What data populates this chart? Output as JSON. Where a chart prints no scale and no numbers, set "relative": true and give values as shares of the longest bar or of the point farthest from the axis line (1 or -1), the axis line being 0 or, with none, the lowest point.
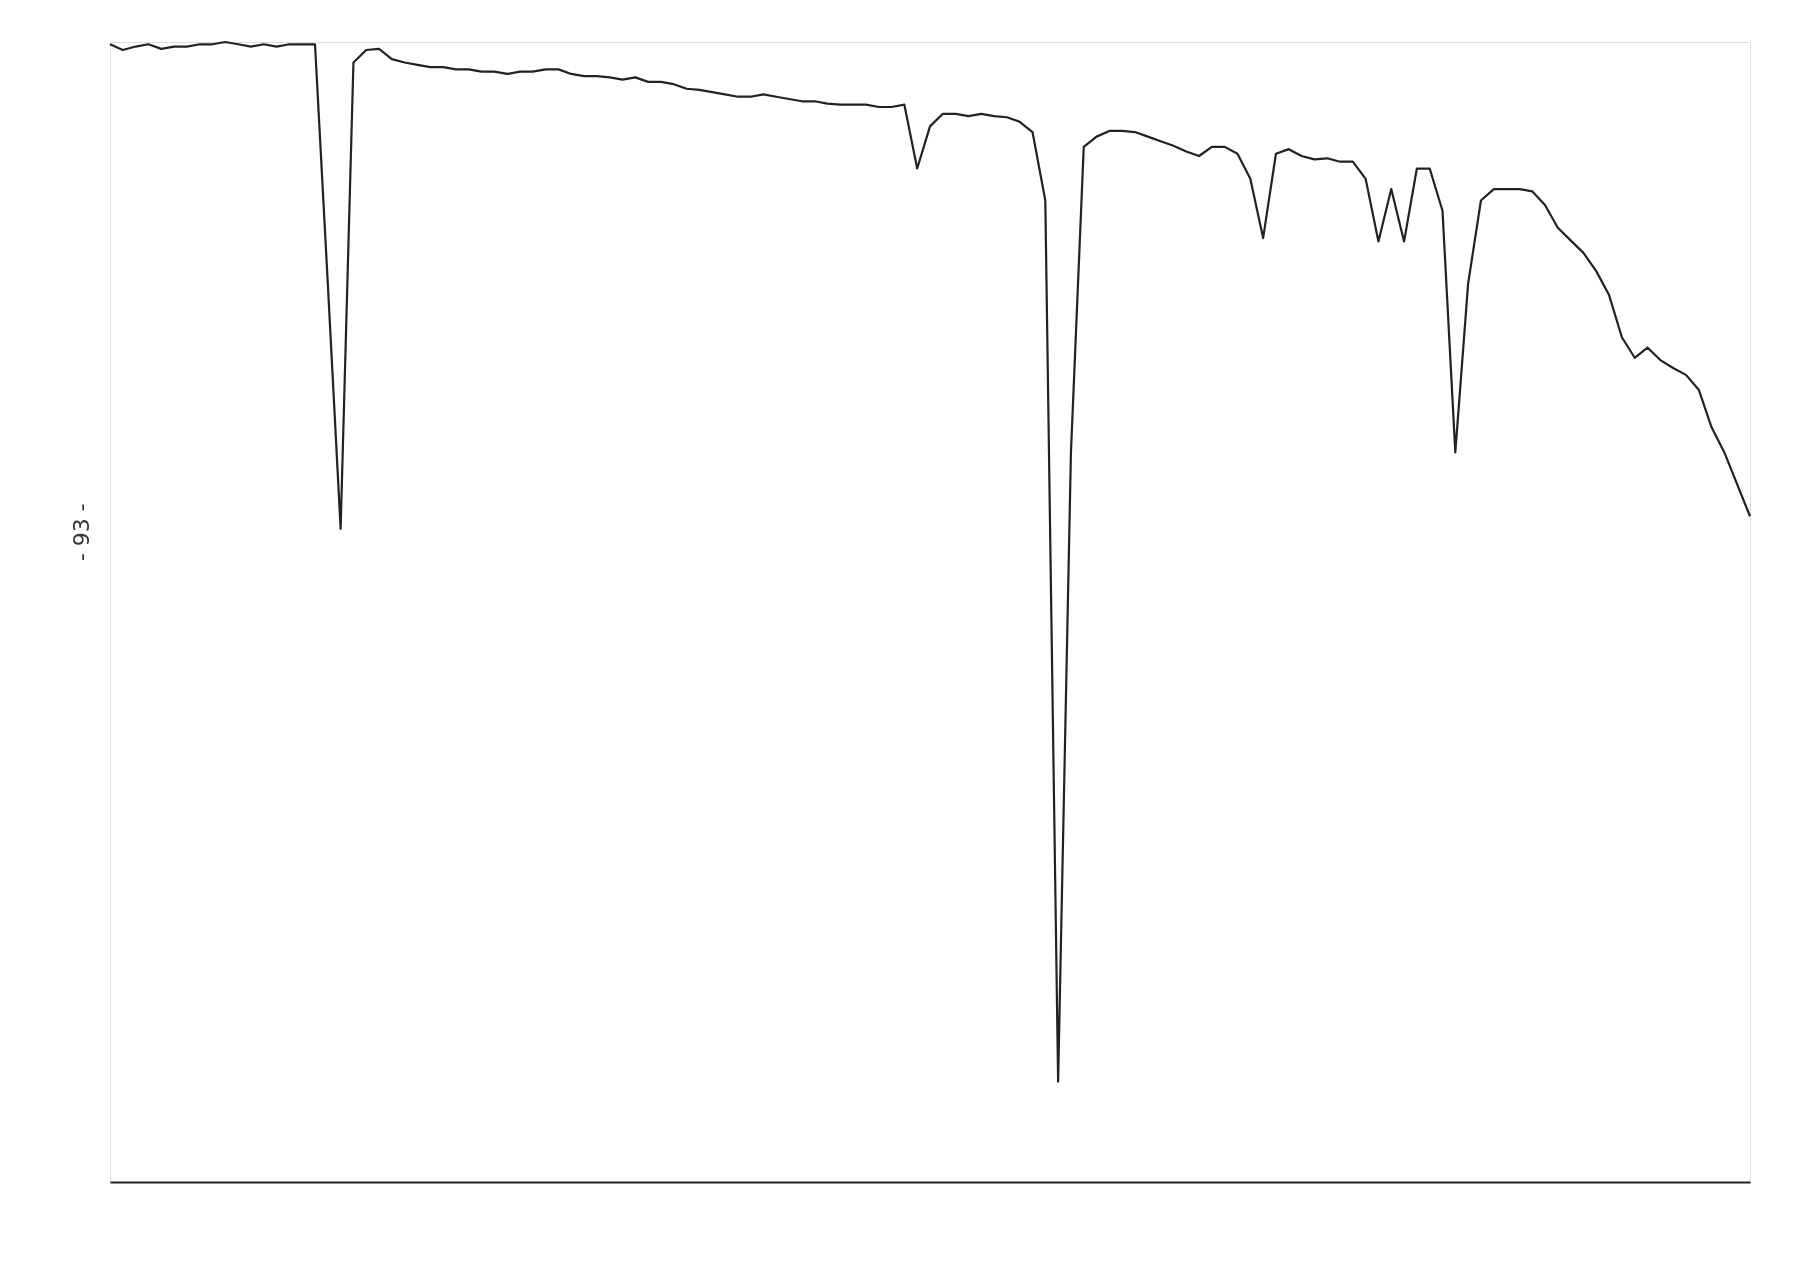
{
  "chart_data": {
    "type": "line",
    "relative": true,
    "line_style": "solid",
    "marker": "none",
    "grid": false,
    "annotations": [
      "- 93 -"
    ],
    "categories": [
      null,
      null,
      null,
      null,
      null,
      null,
      null,
      null,
      null,
      null,
      null,
      null,
      null,
      null,
      null,
      null,
      null,
      null,
      null,
      null,
      null,
      null,
      null,
      null,
      null,
      null,
      null,
      null,
      null,
      null,
      null,
      null,
      null,
      null,
      null,
      null,
      null,
      null,
      null,
      null,
      null,
      null,
      null,
      null,
      null,
      null,
      null,
      null,
      null,
      null,
      null,
      null,
      null,
      null,
      null,
      null,
      null,
      null,
      null,
      null,
      null,
      null,
      null,
      null,
      null,
      null,
      null,
      null,
      null,
      null,
      null,
      null,
      null,
      null,
      null,
      null,
      null,
      null,
      null,
      null,
      null,
      null,
      null,
      null,
      null,
      null,
      null,
      null,
      null,
      null,
      null,
      null,
      null,
      null,
      null,
      null,
      null,
      null,
      null,
      null,
      null,
      null,
      null,
      null,
      null,
      null,
      null,
      null,
      null,
      null,
      null,
      null,
      null,
      null,
      null,
      null,
      null,
      null,
      null,
      null,
      null,
      null,
      null,
      null,
      null,
      null,
      null,
      null,
      null
    ],
    "series": [
      {
        "color": "#222222",
        "values": [
          0.998,
          0.993,
          0.996,
          0.998,
          0.994,
          0.996,
          0.996,
          0.998,
          0.998,
          1.0,
          0.998,
          0.996,
          0.998,
          0.996,
          0.998,
          0.998,
          0.998,
          0.788,
          0.573,
          0.982,
          0.993,
          0.994,
          0.985,
          0.982,
          0.98,
          0.978,
          0.978,
          0.976,
          0.976,
          0.974,
          0.974,
          0.972,
          0.974,
          0.974,
          0.976,
          0.976,
          0.972,
          0.97,
          0.97,
          0.969,
          0.967,
          0.969,
          0.965,
          0.965,
          0.963,
          0.959,
          0.958,
          0.956,
          0.954,
          0.952,
          0.952,
          0.954,
          0.952,
          0.95,
          0.948,
          0.948,
          0.946,
          0.945,
          0.945,
          0.945,
          0.943,
          0.943,
          0.945,
          0.889,
          0.926,
          0.937,
          0.937,
          0.935,
          0.937,
          0.935,
          0.934,
          0.93,
          0.921,
          0.861,
          0.088,
          0.64,
          0.908,
          0.917,
          0.922,
          0.922,
          0.921,
          0.917,
          0.913,
          0.909,
          0.904,
          0.9,
          0.908,
          0.908,
          0.902,
          0.88,
          0.828,
          0.902,
          0.906,
          0.9,
          0.897,
          0.898,
          0.895,
          0.895,
          0.88,
          0.825,
          0.871,
          0.825,
          0.889,
          0.889,
          0.852,
          0.64,
          0.788,
          0.861,
          0.871,
          0.871,
          0.871,
          0.869,
          0.857,
          0.837,
          0.826,
          0.815,
          0.799,
          0.778,
          0.741,
          0.723,
          0.732,
          0.721,
          0.714,
          0.708,
          0.695,
          0.662,
          0.64,
          0.612,
          0.584
        ]
      }
    ]
  }
}
